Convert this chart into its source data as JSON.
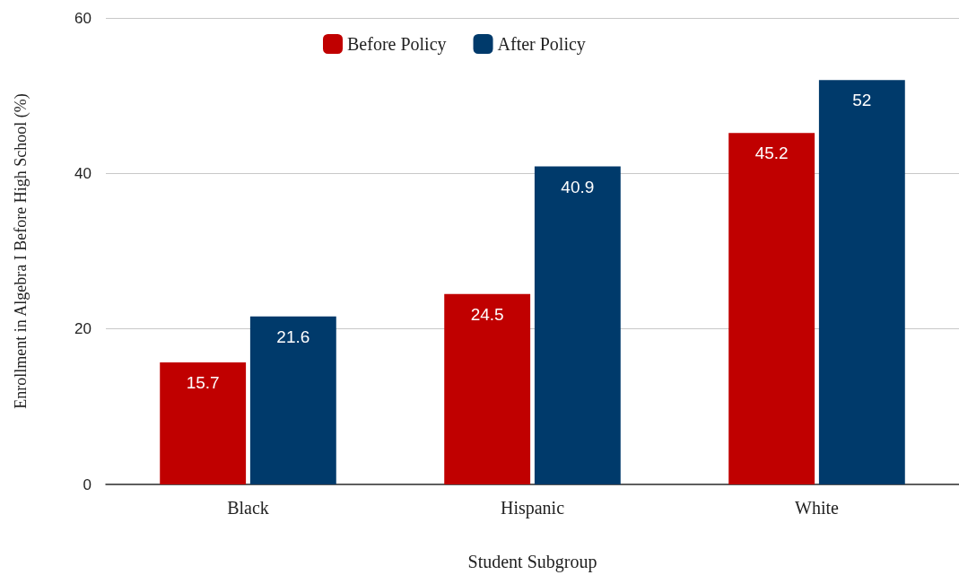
{
  "chart_data": {
    "type": "bar",
    "xlabel": "Student Subgroup",
    "ylabel": "Enrollment in Algebra I Before High School (%)",
    "categories": [
      "Black",
      "Hispanic",
      "White"
    ],
    "series": [
      {
        "name": "Before Policy",
        "color": "#c00000",
        "values": [
          15.7,
          24.5,
          45.2
        ]
      },
      {
        "name": "After Policy",
        "color": "#003a6b",
        "values": [
          21.6,
          40.9,
          52
        ]
      }
    ],
    "ylim": [
      0,
      60
    ],
    "yticks": [
      0,
      20,
      40,
      60
    ],
    "grid": "y",
    "legend": "top",
    "data_labels": true
  }
}
